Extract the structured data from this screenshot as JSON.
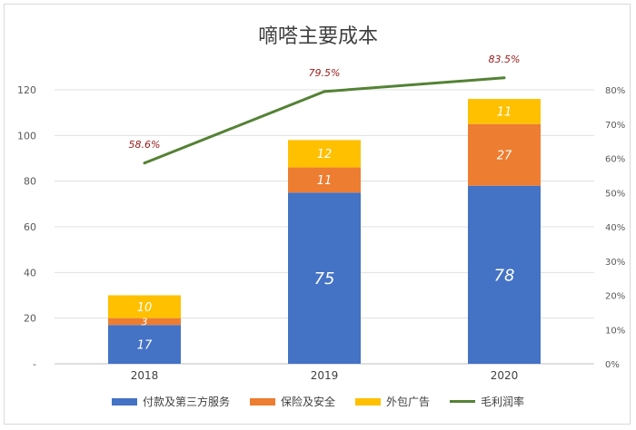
{
  "chart_data": {
    "type": "bar",
    "title": "嘀嗒主要成本",
    "categories": [
      "2018",
      "2019",
      "2020"
    ],
    "series": [
      {
        "name": "付款及第三方服务",
        "values": [
          17,
          75,
          78
        ],
        "labels": [
          "17",
          "75",
          "78"
        ],
        "color": "#4472c4",
        "label_color": "#ffffff"
      },
      {
        "name": "保险及安全",
        "values": [
          3,
          11,
          27
        ],
        "labels": [
          "3",
          "11",
          "27"
        ],
        "color": "#ed7d31",
        "label_color": "#ffffff"
      },
      {
        "name": "外包广告",
        "values": [
          10,
          12,
          11
        ],
        "labels": [
          "10",
          "12",
          "11"
        ],
        "color": "#ffc000",
        "label_color": "#ffffff"
      }
    ],
    "line_series": {
      "name": "毛利润率",
      "values": [
        58.6,
        79.5,
        83.5
      ],
      "labels": [
        "58.6%",
        "79.5%",
        "83.5%"
      ],
      "color": "#548235",
      "label_color": "#9b1b1b"
    },
    "y_left": {
      "ylim": [
        0,
        120
      ],
      "ticks": [
        "-",
        "20",
        "40",
        "60",
        "80",
        "100",
        "120"
      ]
    },
    "y_right": {
      "ylim": [
        0,
        80
      ],
      "ticks": [
        "0%",
        "10%",
        "20%",
        "30%",
        "40%",
        "50%",
        "60%",
        "70%",
        "80%"
      ]
    },
    "grid": true,
    "legend_position": "bottom"
  }
}
